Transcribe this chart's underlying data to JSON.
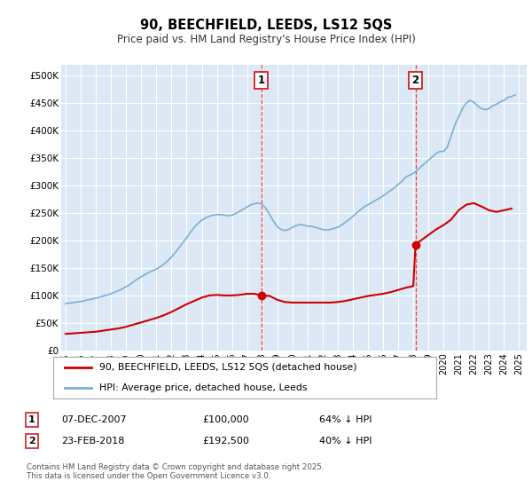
{
  "title": "90, BEECHFIELD, LEEDS, LS12 5QS",
  "subtitle": "Price paid vs. HM Land Registry's House Price Index (HPI)",
  "ylim": [
    0,
    520000
  ],
  "yticks": [
    0,
    50000,
    100000,
    150000,
    200000,
    250000,
    300000,
    350000,
    400000,
    450000,
    500000
  ],
  "ytick_labels": [
    "£0",
    "£50K",
    "£100K",
    "£150K",
    "£200K",
    "£250K",
    "£300K",
    "£350K",
    "£400K",
    "£450K",
    "£500K"
  ],
  "bg_color": "#dce8f5",
  "line_color_red": "#cc0000",
  "line_color_blue": "#7ab0d4",
  "grid_color": "#ffffff",
  "purchase1_date": "07-DEC-2007",
  "purchase1_price": 100000,
  "purchase1_x": 2007.93,
  "purchase2_date": "23-FEB-2018",
  "purchase2_price": 192500,
  "purchase2_x": 2018.14,
  "legend_red": "90, BEECHFIELD, LEEDS, LS12 5QS (detached house)",
  "legend_blue": "HPI: Average price, detached house, Leeds",
  "footnote": "Contains HM Land Registry data © Crown copyright and database right 2025.\nThis data is licensed under the Open Government Licence v3.0.",
  "xtick_years": [
    1995,
    1996,
    1997,
    1998,
    1999,
    2000,
    2001,
    2002,
    2003,
    2004,
    2005,
    2006,
    2007,
    2008,
    2009,
    2010,
    2011,
    2012,
    2013,
    2014,
    2015,
    2016,
    2017,
    2018,
    2019,
    2020,
    2021,
    2022,
    2023,
    2024,
    2025
  ],
  "hpi_x": [
    1995.0,
    1995.25,
    1995.5,
    1995.75,
    1996.0,
    1996.25,
    1996.5,
    1996.75,
    1997.0,
    1997.25,
    1997.5,
    1997.75,
    1998.0,
    1998.25,
    1998.5,
    1998.75,
    1999.0,
    1999.25,
    1999.5,
    1999.75,
    2000.0,
    2000.25,
    2000.5,
    2000.75,
    2001.0,
    2001.25,
    2001.5,
    2001.75,
    2002.0,
    2002.25,
    2002.5,
    2002.75,
    2003.0,
    2003.25,
    2003.5,
    2003.75,
    2004.0,
    2004.25,
    2004.5,
    2004.75,
    2005.0,
    2005.25,
    2005.5,
    2005.75,
    2006.0,
    2006.25,
    2006.5,
    2006.75,
    2007.0,
    2007.25,
    2007.5,
    2007.75,
    2008.0,
    2008.25,
    2008.5,
    2008.75,
    2009.0,
    2009.25,
    2009.5,
    2009.75,
    2010.0,
    2010.25,
    2010.5,
    2010.75,
    2011.0,
    2011.25,
    2011.5,
    2011.75,
    2012.0,
    2012.25,
    2012.5,
    2012.75,
    2013.0,
    2013.25,
    2013.5,
    2013.75,
    2014.0,
    2014.25,
    2014.5,
    2014.75,
    2015.0,
    2015.25,
    2015.5,
    2015.75,
    2016.0,
    2016.25,
    2016.5,
    2016.75,
    2017.0,
    2017.25,
    2017.5,
    2017.75,
    2018.0,
    2018.25,
    2018.5,
    2018.75,
    2019.0,
    2019.25,
    2019.5,
    2019.75,
    2020.0,
    2020.25,
    2020.5,
    2020.75,
    2021.0,
    2021.25,
    2021.5,
    2021.75,
    2022.0,
    2022.25,
    2022.5,
    2022.75,
    2023.0,
    2023.25,
    2023.5,
    2023.75,
    2024.0,
    2024.25,
    2024.5,
    2024.75
  ],
  "hpi_y": [
    85000,
    86000,
    87000,
    88000,
    89000,
    90500,
    92000,
    93500,
    95000,
    97000,
    99000,
    101000,
    103000,
    106000,
    109000,
    112000,
    116000,
    120000,
    125000,
    130000,
    134000,
    138000,
    142000,
    145000,
    148000,
    152000,
    157000,
    163000,
    170000,
    178000,
    187000,
    196000,
    205000,
    215000,
    224000,
    231000,
    237000,
    241000,
    244000,
    246000,
    247000,
    247000,
    246000,
    245000,
    246000,
    249000,
    253000,
    257000,
    261000,
    265000,
    267000,
    268000,
    266000,
    258000,
    247000,
    235000,
    225000,
    220000,
    218000,
    220000,
    224000,
    227000,
    229000,
    228000,
    226000,
    226000,
    224000,
    222000,
    220000,
    219000,
    220000,
    222000,
    224000,
    228000,
    233000,
    238000,
    244000,
    250000,
    256000,
    261000,
    265000,
    269000,
    273000,
    277000,
    281000,
    286000,
    291000,
    296000,
    302000,
    308000,
    315000,
    319000,
    322000,
    328000,
    334000,
    340000,
    346000,
    352000,
    358000,
    362000,
    362000,
    370000,
    390000,
    410000,
    425000,
    440000,
    450000,
    455000,
    452000,
    445000,
    440000,
    438000,
    440000,
    445000,
    448000,
    452000,
    455000,
    460000,
    462000,
    465000
  ],
  "red_x_seg1": [
    1995.0,
    1995.5,
    1996.0,
    1996.5,
    1997.0,
    1997.5,
    1998.0,
    1998.5,
    1999.0,
    1999.5,
    2000.0,
    2000.5,
    2001.0,
    2001.5,
    2002.0,
    2002.5,
    2003.0,
    2003.5,
    2004.0,
    2004.5,
    2005.0,
    2005.5,
    2006.0,
    2006.5,
    2007.0,
    2007.5,
    2007.93
  ],
  "red_y_seg1": [
    30000,
    31000,
    32000,
    33000,
    34000,
    36000,
    38000,
    40000,
    43000,
    47000,
    51000,
    55000,
    59000,
    64000,
    70000,
    77000,
    84000,
    90000,
    96000,
    100000,
    101000,
    100000,
    100000,
    101000,
    103000,
    103000,
    100000
  ],
  "red_x_seg2": [
    2007.93,
    2008.0,
    2008.5,
    2009.0,
    2009.5,
    2010.0,
    2010.5,
    2011.0,
    2011.5,
    2012.0,
    2012.5,
    2013.0,
    2013.5,
    2014.0,
    2014.5,
    2015.0,
    2015.5,
    2016.0,
    2016.5,
    2017.0,
    2017.5,
    2018.0,
    2018.14
  ],
  "red_y_seg2": [
    100000,
    100000,
    99000,
    92000,
    88000,
    87000,
    87000,
    87000,
    87000,
    87000,
    87000,
    88000,
    90000,
    93000,
    96000,
    99000,
    101000,
    103000,
    106000,
    110000,
    114000,
    117000,
    192500
  ],
  "red_x_seg3": [
    2018.14,
    2018.5,
    2019.0,
    2019.5,
    2020.0,
    2020.5,
    2021.0,
    2021.5,
    2022.0,
    2022.5,
    2023.0,
    2023.5,
    2024.0,
    2024.5
  ],
  "red_y_seg3": [
    192500,
    200000,
    210000,
    220000,
    228000,
    238000,
    255000,
    265000,
    268000,
    262000,
    255000,
    252000,
    255000,
    258000
  ]
}
